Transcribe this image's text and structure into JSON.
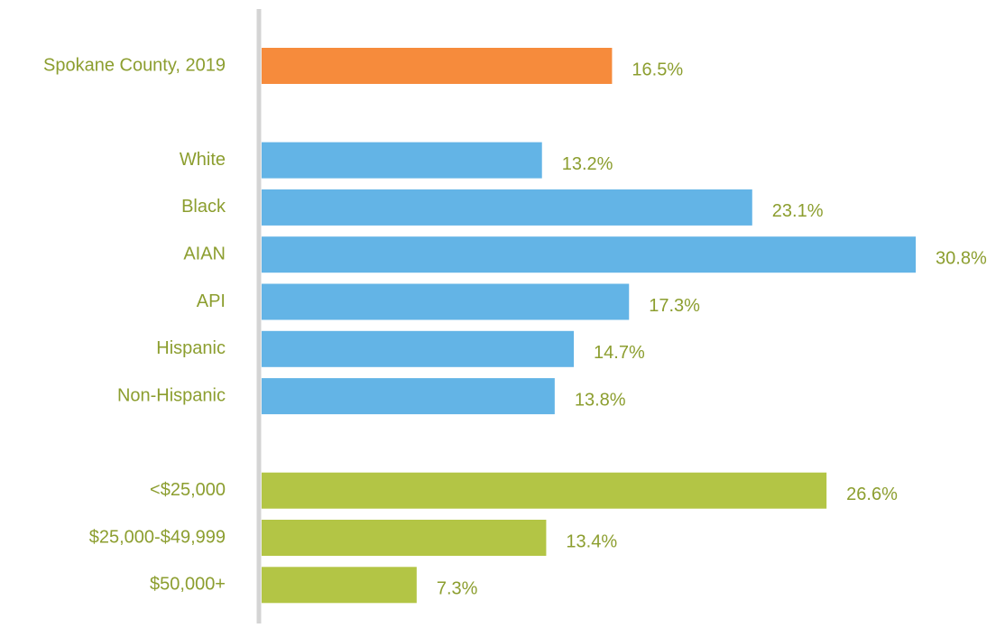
{
  "chart_data": {
    "type": "hbar",
    "categories": [
      "Spokane County, 2019",
      null,
      "White",
      "Black",
      "AIAN",
      "API",
      "Hispanic",
      "Non-Hispanic",
      null,
      "<$25,000",
      "$25,000-$49,999",
      "$50,000+"
    ],
    "values": [
      16.5,
      null,
      13.2,
      23.1,
      30.8,
      17.3,
      14.7,
      13.8,
      null,
      26.6,
      13.4,
      7.3
    ],
    "value_labels": [
      "16.5%",
      null,
      "13.2%",
      "23.1%",
      "30.8%",
      "17.3%",
      "14.7%",
      "13.8%",
      null,
      "26.6%",
      "13.4%",
      "7.3%"
    ],
    "colors": [
      "#f68b3c",
      null,
      "#63b4e6",
      "#63b4e6",
      "#63b4e6",
      "#63b4e6",
      "#63b4e6",
      "#63b4e6",
      null,
      "#b3c545",
      "#b3c545",
      "#b3c545"
    ]
  }
}
